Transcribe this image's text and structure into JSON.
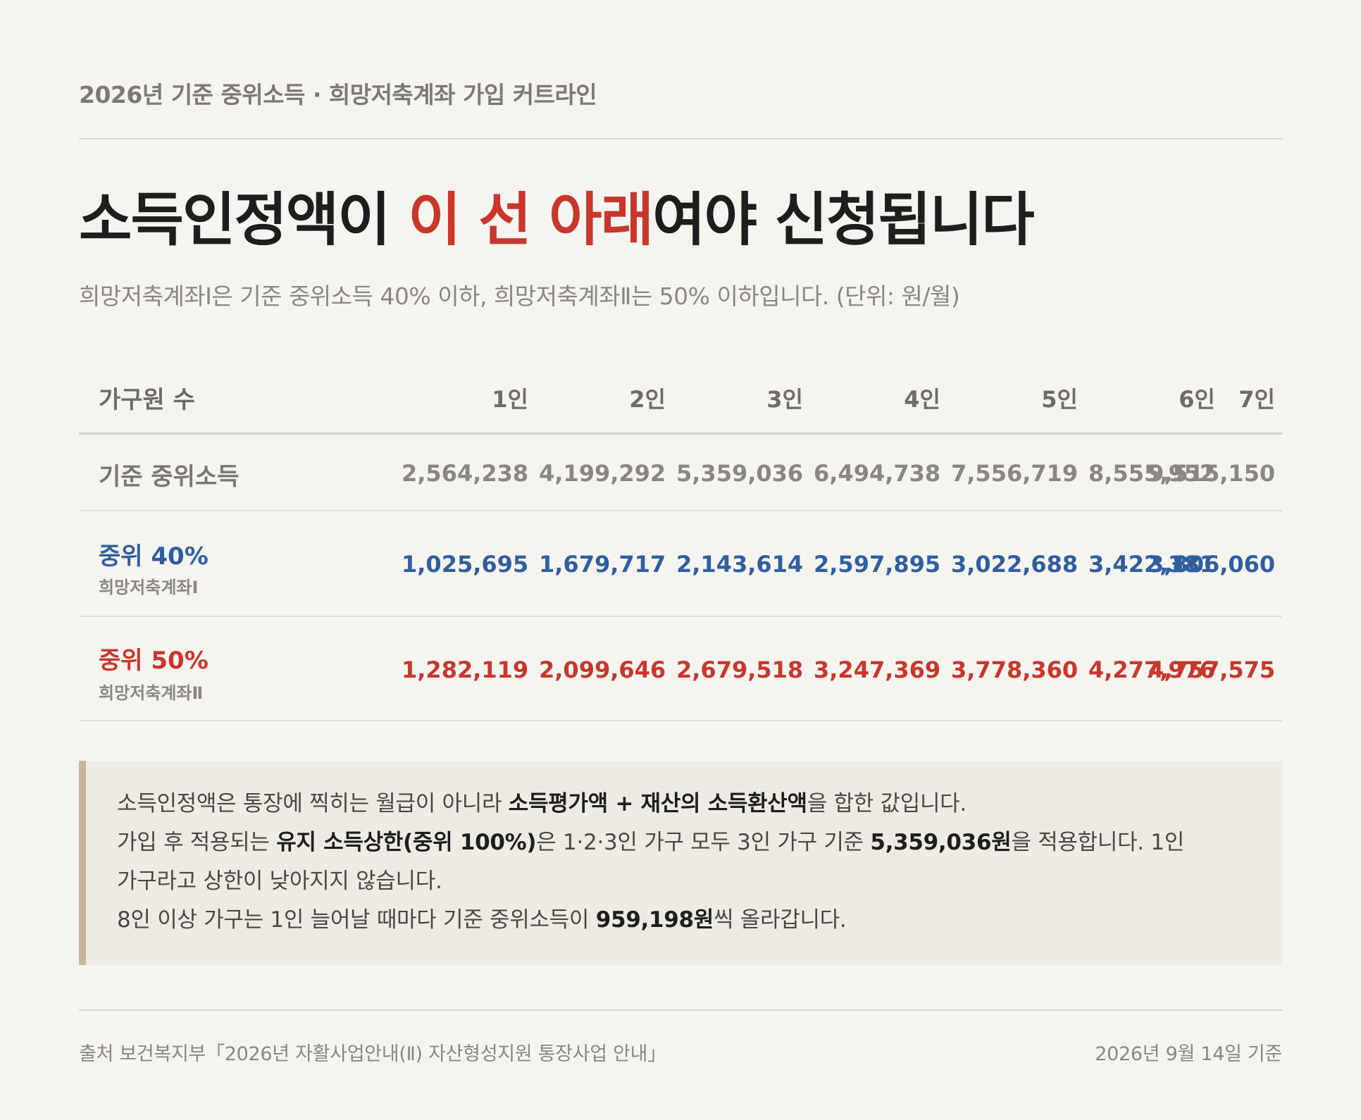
{
  "kicker": "2026년 기준 중위소득 · 희망저축계좌 가입 커트라인",
  "headline": {
    "before": "소득인정액이 ",
    "accent": "이 선 아래",
    "after": "여야 신청됩니다"
  },
  "subtitle": "희망저축계좌Ⅰ은 기준 중위소득 40% 이하, 희망저축계좌Ⅱ는 50% 이하입니다. (단위: 원/월)",
  "colors": {
    "accent_red": "#c9372c",
    "accent_blue": "#2f5fa0",
    "background": "#f6f4ef",
    "note_bar": "#c8b79c"
  },
  "table": {
    "header_label": "가구원 수",
    "columns": [
      "1인",
      "2인",
      "3인",
      "4인",
      "5인",
      "6인",
      "7인"
    ],
    "rows": [
      {
        "label": "기준 중위소득",
        "sublabel": "",
        "values": [
          "2,564,238",
          "4,199,292",
          "5,359,036",
          "6,494,738",
          "7,556,719",
          "8,555,952",
          "9,515,150"
        ]
      },
      {
        "label": "중위 40%",
        "sublabel": "희망저축계좌Ⅰ",
        "values": [
          "1,025,695",
          "1,679,717",
          "2,143,614",
          "2,597,895",
          "3,022,688",
          "3,422,381",
          "3,806,060"
        ]
      },
      {
        "label": "중위 50%",
        "sublabel": "희망저축계좌Ⅱ",
        "values": [
          "1,282,119",
          "2,099,646",
          "2,679,518",
          "3,247,369",
          "3,778,360",
          "4,277,976",
          "4,757,575"
        ]
      }
    ]
  },
  "note": {
    "line1_a": "소득인정액은 통장에 찍히는 월급이 아니라 ",
    "line1_b": "소득평가액 + 재산의 소득환산액",
    "line1_c": "을 합한 값입니다.",
    "line2_a": "가입 후 적용되는 ",
    "line2_b": "유지 소득상한(중위 100%)",
    "line2_c": "은 1·2·3인 가구 모두 3인 가구 기준 ",
    "line2_d": "5,359,036원",
    "line2_e": "을 적용합니다. 1인",
    "line3": "가구라고 상한이 낮아지지 않습니다.",
    "line4_a": "8인 이상 가구는 1인 늘어날 때마다 기준 중위소득이 ",
    "line4_b": "959,198원",
    "line4_c": "씩 올라갑니다."
  },
  "footer": {
    "source": "출처 보건복지부「2026년 자활사업안내(Ⅱ) 자산형성지원 통장사업 안내」",
    "as_of": "2026년 9월 14일 기준"
  }
}
